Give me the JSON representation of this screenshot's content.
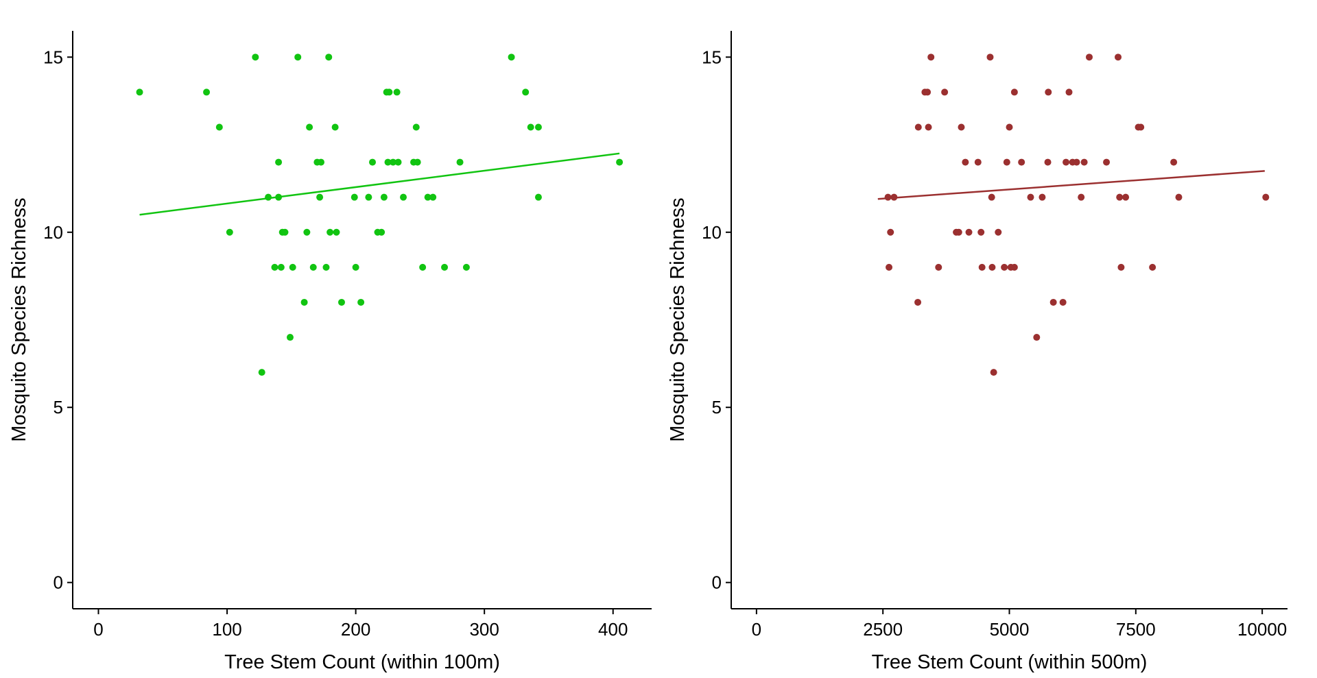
{
  "chart_data": [
    {
      "type": "scatter",
      "title": "",
      "xlabel": "Tree Stem Count (within 100m)",
      "ylabel": "Mosquito Species Richness",
      "xlim": [
        -20,
        430
      ],
      "ylim": [
        -0.75,
        15.75
      ],
      "x_ticks": [
        0,
        100,
        200,
        300,
        400
      ],
      "x_tick_labels": [
        "0",
        "100",
        "200",
        "300",
        "400"
      ],
      "y_ticks": [
        0,
        5,
        10,
        15
      ],
      "y_tick_labels": [
        "0",
        "5",
        "10",
        "15"
      ],
      "grid": false,
      "color": "#11c411",
      "points": [
        {
          "x": 32,
          "y": 14
        },
        {
          "x": 84,
          "y": 14
        },
        {
          "x": 94,
          "y": 13
        },
        {
          "x": 102,
          "y": 10
        },
        {
          "x": 122,
          "y": 15
        },
        {
          "x": 127,
          "y": 6
        },
        {
          "x": 132,
          "y": 11
        },
        {
          "x": 137,
          "y": 9
        },
        {
          "x": 140,
          "y": 12
        },
        {
          "x": 140,
          "y": 11
        },
        {
          "x": 142,
          "y": 9
        },
        {
          "x": 143,
          "y": 10
        },
        {
          "x": 145,
          "y": 10
        },
        {
          "x": 149,
          "y": 7
        },
        {
          "x": 151,
          "y": 9
        },
        {
          "x": 155,
          "y": 15
        },
        {
          "x": 160,
          "y": 8
        },
        {
          "x": 162,
          "y": 10
        },
        {
          "x": 164,
          "y": 13
        },
        {
          "x": 167,
          "y": 9
        },
        {
          "x": 170,
          "y": 12
        },
        {
          "x": 172,
          "y": 11
        },
        {
          "x": 173,
          "y": 12
        },
        {
          "x": 177,
          "y": 9
        },
        {
          "x": 179,
          "y": 15
        },
        {
          "x": 180,
          "y": 10
        },
        {
          "x": 184,
          "y": 13
        },
        {
          "x": 185,
          "y": 10
        },
        {
          "x": 189,
          "y": 8
        },
        {
          "x": 199,
          "y": 11
        },
        {
          "x": 200,
          "y": 9
        },
        {
          "x": 204,
          "y": 8
        },
        {
          "x": 210,
          "y": 11
        },
        {
          "x": 213,
          "y": 12
        },
        {
          "x": 217,
          "y": 10
        },
        {
          "x": 220,
          "y": 10
        },
        {
          "x": 222,
          "y": 11
        },
        {
          "x": 224,
          "y": 14
        },
        {
          "x": 225,
          "y": 12
        },
        {
          "x": 226,
          "y": 14
        },
        {
          "x": 229,
          "y": 12
        },
        {
          "x": 232,
          "y": 14
        },
        {
          "x": 233,
          "y": 12
        },
        {
          "x": 237,
          "y": 11
        },
        {
          "x": 245,
          "y": 12
        },
        {
          "x": 247,
          "y": 13
        },
        {
          "x": 248,
          "y": 12
        },
        {
          "x": 252,
          "y": 9
        },
        {
          "x": 256,
          "y": 11
        },
        {
          "x": 260,
          "y": 11
        },
        {
          "x": 269,
          "y": 9
        },
        {
          "x": 281,
          "y": 12
        },
        {
          "x": 286,
          "y": 9
        },
        {
          "x": 321,
          "y": 15
        },
        {
          "x": 332,
          "y": 14
        },
        {
          "x": 336,
          "y": 13
        },
        {
          "x": 342,
          "y": 13
        },
        {
          "x": 342,
          "y": 11
        },
        {
          "x": 405,
          "y": 12
        }
      ],
      "trend_line": {
        "x": [
          32,
          405
        ],
        "y": [
          10.5,
          12.25
        ]
      }
    },
    {
      "type": "scatter",
      "title": "",
      "xlabel": "Tree Stem Count (within 500m)",
      "ylabel": "Mosquito Species Richness",
      "xlim": [
        -500,
        10500
      ],
      "ylim": [
        -0.75,
        15.75
      ],
      "x_ticks": [
        0,
        2500,
        5000,
        7500,
        10000
      ],
      "x_tick_labels": [
        "0",
        "2500",
        "5000",
        "7500",
        "10000"
      ],
      "y_ticks": [
        0,
        5,
        10,
        15
      ],
      "y_tick_labels": [
        "0",
        "5",
        "10",
        "15"
      ],
      "grid": false,
      "color": "#9b3030",
      "points": [
        {
          "x": 2600,
          "y": 11
        },
        {
          "x": 2620,
          "y": 9
        },
        {
          "x": 2650,
          "y": 10
        },
        {
          "x": 2720,
          "y": 11
        },
        {
          "x": 3190,
          "y": 8
        },
        {
          "x": 3200,
          "y": 13
        },
        {
          "x": 3330,
          "y": 14
        },
        {
          "x": 3380,
          "y": 14
        },
        {
          "x": 3400,
          "y": 13
        },
        {
          "x": 3450,
          "y": 15
        },
        {
          "x": 3600,
          "y": 9
        },
        {
          "x": 3720,
          "y": 14
        },
        {
          "x": 3950,
          "y": 10
        },
        {
          "x": 4000,
          "y": 10
        },
        {
          "x": 4050,
          "y": 13
        },
        {
          "x": 4130,
          "y": 12
        },
        {
          "x": 4200,
          "y": 10
        },
        {
          "x": 4380,
          "y": 12
        },
        {
          "x": 4440,
          "y": 10
        },
        {
          "x": 4460,
          "y": 9
        },
        {
          "x": 4620,
          "y": 15
        },
        {
          "x": 4650,
          "y": 11
        },
        {
          "x": 4660,
          "y": 9
        },
        {
          "x": 4690,
          "y": 6
        },
        {
          "x": 4780,
          "y": 10
        },
        {
          "x": 4900,
          "y": 9
        },
        {
          "x": 4950,
          "y": 12
        },
        {
          "x": 5000,
          "y": 13
        },
        {
          "x": 5030,
          "y": 9
        },
        {
          "x": 5100,
          "y": 9
        },
        {
          "x": 5100,
          "y": 14
        },
        {
          "x": 5240,
          "y": 12
        },
        {
          "x": 5420,
          "y": 11
        },
        {
          "x": 5540,
          "y": 7
        },
        {
          "x": 5650,
          "y": 11
        },
        {
          "x": 5760,
          "y": 12
        },
        {
          "x": 5770,
          "y": 14
        },
        {
          "x": 5870,
          "y": 8
        },
        {
          "x": 6060,
          "y": 8
        },
        {
          "x": 6120,
          "y": 12
        },
        {
          "x": 6180,
          "y": 14
        },
        {
          "x": 6250,
          "y": 12
        },
        {
          "x": 6330,
          "y": 12
        },
        {
          "x": 6420,
          "y": 11
        },
        {
          "x": 6480,
          "y": 12
        },
        {
          "x": 6580,
          "y": 15
        },
        {
          "x": 6920,
          "y": 12
        },
        {
          "x": 7150,
          "y": 15
        },
        {
          "x": 7180,
          "y": 11
        },
        {
          "x": 7210,
          "y": 9
        },
        {
          "x": 7300,
          "y": 11
        },
        {
          "x": 7550,
          "y": 13
        },
        {
          "x": 7600,
          "y": 13
        },
        {
          "x": 7830,
          "y": 9
        },
        {
          "x": 8250,
          "y": 12
        },
        {
          "x": 8350,
          "y": 11
        },
        {
          "x": 10070,
          "y": 11
        }
      ],
      "trend_line": {
        "x": [
          2400,
          10050
        ],
        "y": [
          10.95,
          11.75
        ]
      }
    }
  ]
}
